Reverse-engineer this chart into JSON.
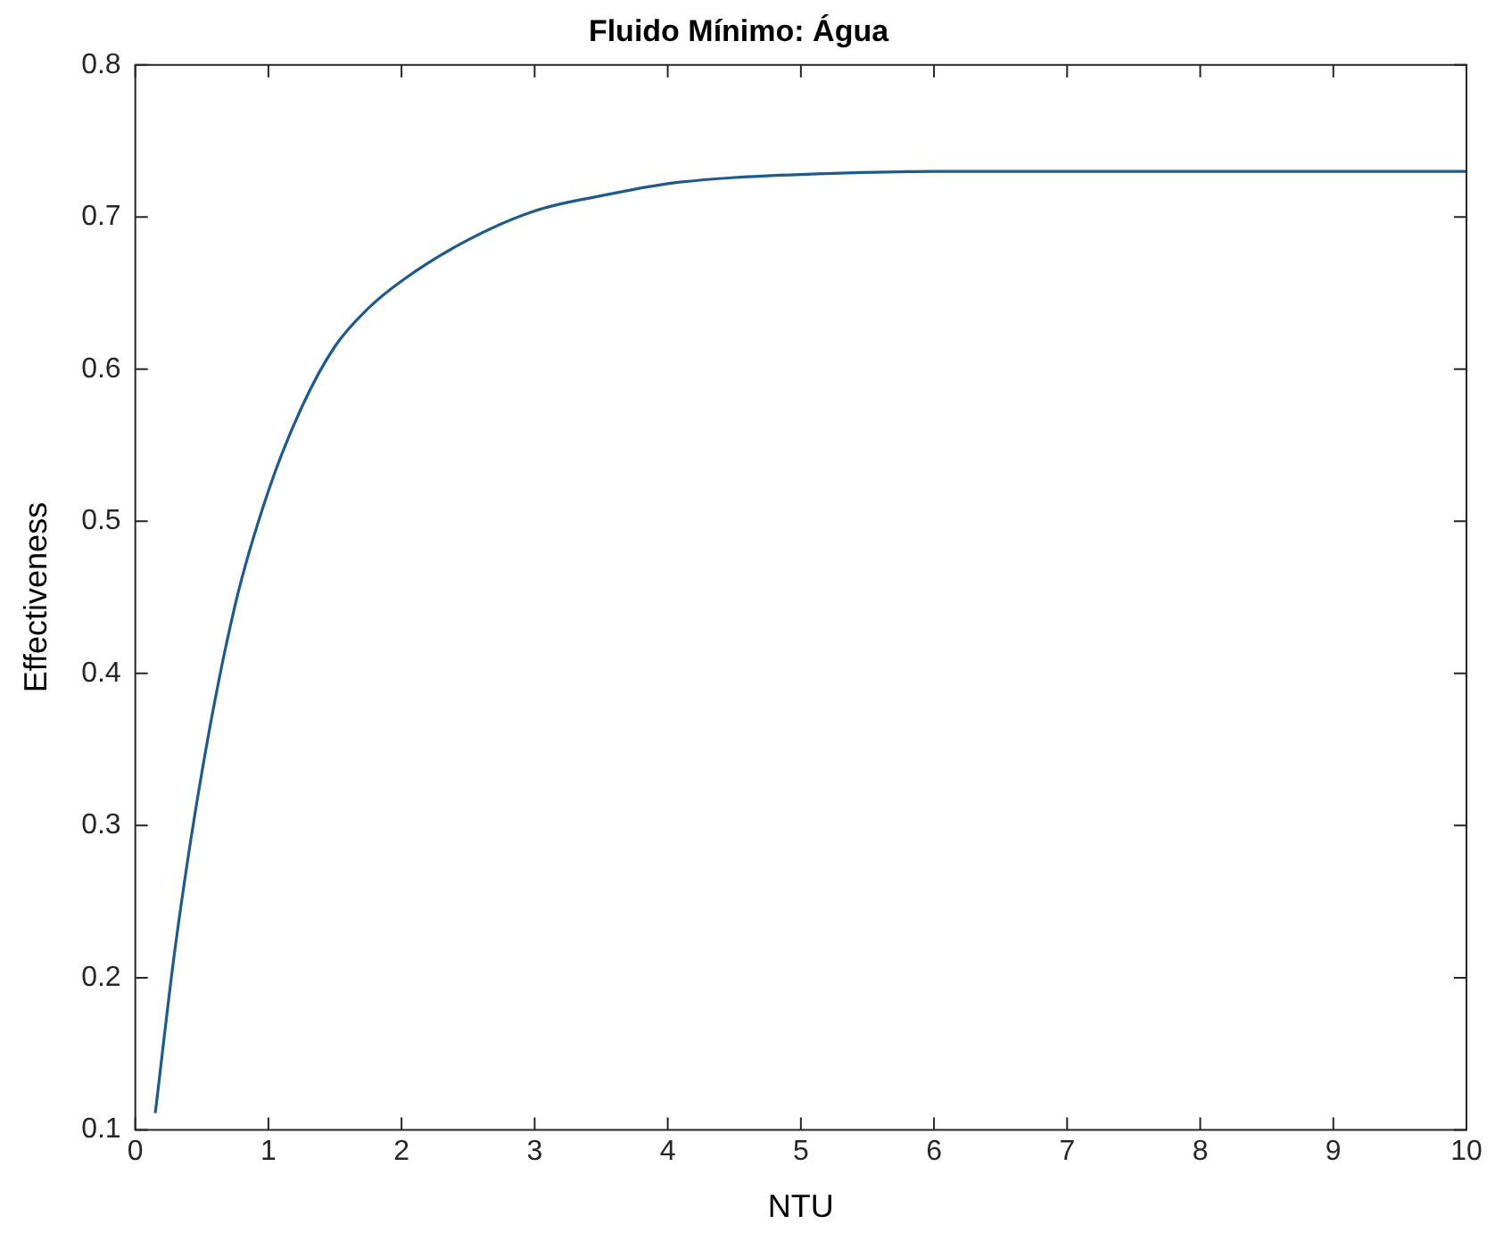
{
  "chart_data": {
    "type": "line",
    "title": "Fluido Mínimo: Água",
    "xlabel": "NTU",
    "ylabel": "Effectiveness",
    "x": [
      0.15,
      0.3,
      0.5,
      0.75,
      1,
      1.25,
      1.5,
      1.75,
      2,
      2.5,
      3,
      3.5,
      4,
      4.5,
      5,
      6,
      7,
      8,
      9,
      10
    ],
    "series": [
      {
        "color": "#1f5a8c",
        "values": [
          0.111,
          0.22,
          0.335,
          0.445,
          0.52,
          0.575,
          0.615,
          0.64,
          0.658,
          0.685,
          0.704,
          0.714,
          0.722,
          0.726,
          0.728,
          0.73,
          0.73,
          0.73,
          0.73,
          0.73
        ]
      }
    ],
    "xlim": [
      0,
      10
    ],
    "xticks": [
      0,
      1,
      2,
      3,
      4,
      5,
      6,
      7,
      8,
      9,
      10
    ],
    "ylim": [
      0.1,
      0.8
    ],
    "yticks": [
      0.1,
      0.2,
      0.3,
      0.4,
      0.5,
      0.6,
      0.7,
      0.8
    ],
    "grid": false,
    "legend": false,
    "marker": "none",
    "line_style": "solid"
  }
}
